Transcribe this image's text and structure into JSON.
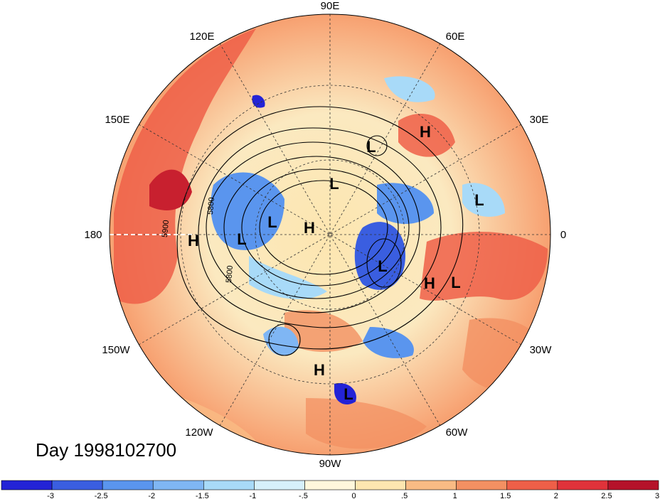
{
  "map": {
    "day_label": "Day 1998102700",
    "longitude_labels": {
      "lon_90e": "90E",
      "lon_120e": "120E",
      "lon_60e": "60E",
      "lon_150e": "150E",
      "lon_30e": "30E",
      "lon_180": "180",
      "lon_0": "0",
      "lon_150w": "150W",
      "lon_30w": "30W",
      "lon_120w": "120W",
      "lon_60w": "60W",
      "lon_90w": "90W"
    },
    "pressure_centers": [
      "H",
      "L",
      "L",
      "L",
      "L",
      "H",
      "L",
      "L",
      "H",
      "L",
      "H",
      "H",
      "L"
    ],
    "contour_labels": [
      "5800",
      "5900",
      "5800"
    ],
    "colorbar": {
      "colors": [
        "#2323d6",
        "#3a5ee0",
        "#5a95ee",
        "#7fb6f4",
        "#a8daf8",
        "#d6f0fb",
        "#fff7dc",
        "#fde6b0",
        "#f9bb84",
        "#f39062",
        "#ee5f48",
        "#e0323a",
        "#b5122a"
      ],
      "tick_labels": [
        "-3",
        "-2.5",
        "-2",
        "-1.5",
        "-1",
        "-.5",
        "0",
        ".5",
        "1",
        "1.5",
        "2",
        "2.5",
        "3"
      ]
    }
  }
}
